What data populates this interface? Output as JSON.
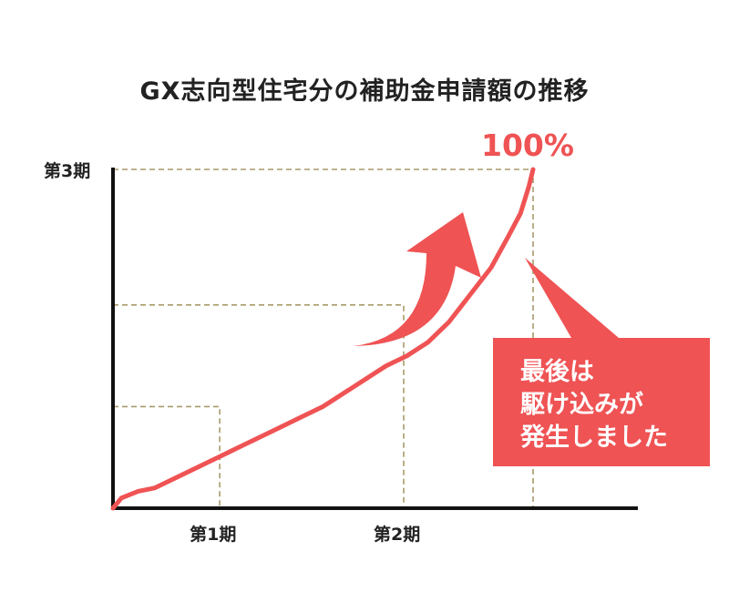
{
  "title": "GX志向型住宅分の補助金申請額の推移",
  "chart_data": {
    "type": "line",
    "title": "GX志向型住宅分の補助金申請額の推移",
    "xlabel": "",
    "ylabel": "",
    "x_ticks": [
      "第1期",
      "第2期"
    ],
    "y_ticks": [
      "第3期"
    ],
    "phases": [
      {
        "label": "第1期",
        "x": 0.254,
        "y": 0.3
      },
      {
        "label": "第2期",
        "x": 0.692,
        "y": 0.6
      },
      {
        "label": "第3期",
        "x": 1.0,
        "y": 1.0
      }
    ],
    "series": [
      {
        "color": "#ef5354",
        "points": [
          [
            0,
            0
          ],
          [
            0.02,
            0.03
          ],
          [
            0.06,
            0.05
          ],
          [
            0.1,
            0.06
          ],
          [
            0.15,
            0.09
          ],
          [
            0.2,
            0.12
          ],
          [
            0.25,
            0.15
          ],
          [
            0.3,
            0.18
          ],
          [
            0.35,
            0.21
          ],
          [
            0.4,
            0.24
          ],
          [
            0.45,
            0.27
          ],
          [
            0.5,
            0.3
          ],
          [
            0.55,
            0.34
          ],
          [
            0.6,
            0.38
          ],
          [
            0.65,
            0.42
          ],
          [
            0.7,
            0.45
          ],
          [
            0.75,
            0.49
          ],
          [
            0.8,
            0.55
          ],
          [
            0.85,
            0.63
          ],
          [
            0.9,
            0.71
          ],
          [
            0.94,
            0.8
          ],
          [
            0.97,
            0.87
          ],
          [
            0.99,
            0.95
          ],
          [
            1.0,
            1.0
          ]
        ]
      }
    ],
    "annotations": {
      "peak_label": "100%",
      "callout_lines": [
        "最後は",
        "駆け込みが",
        "発生しました"
      ]
    },
    "colors": {
      "line": "#ef5354",
      "arrow": "#ef5354",
      "guide": "#a89a6a",
      "axis": "#111111"
    }
  }
}
